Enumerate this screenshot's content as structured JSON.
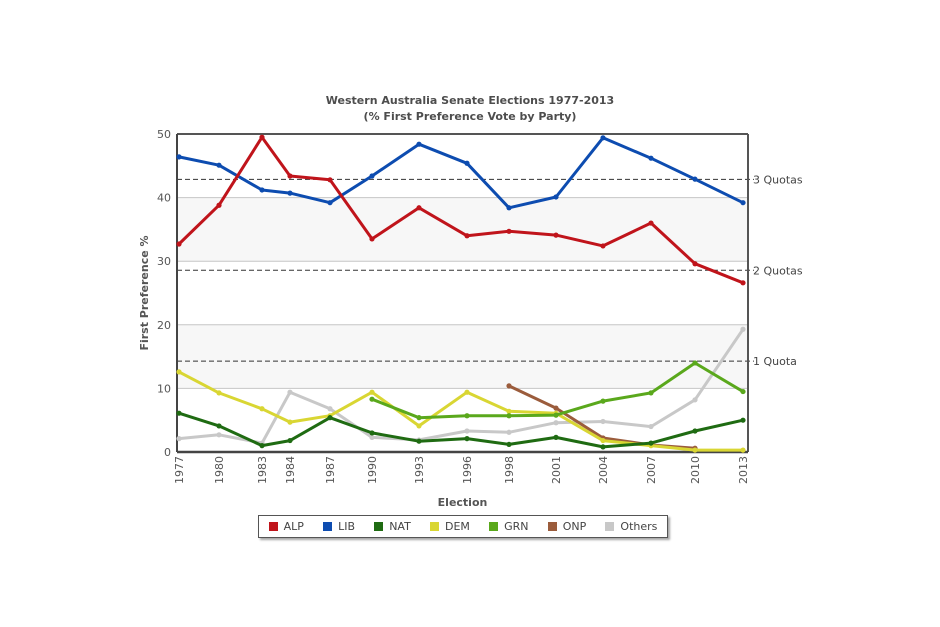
{
  "chart_data": {
    "type": "line",
    "title": "Western Australia Senate Elections 1977-2013",
    "subtitle": "(% First Preference Vote by Party)",
    "xlabel": "Election",
    "ylabel": "First Preference %",
    "ylim": [
      0,
      50
    ],
    "yticks": [
      0,
      10,
      20,
      30,
      40,
      50
    ],
    "grid": true,
    "banded_background": [
      [
        10,
        20
      ],
      [
        30,
        40
      ]
    ],
    "legend_position": "bottom",
    "categories": [
      "1977",
      "1980",
      "1983",
      "1984",
      "1987",
      "1990",
      "1993",
      "1996",
      "1998",
      "2001",
      "2004",
      "2007",
      "2010",
      "2013"
    ],
    "reference_lines": [
      {
        "label": "3 Quotas",
        "value": 42.86
      },
      {
        "label": "2 Quotas",
        "value": 28.57
      },
      {
        "label": "1 Quota",
        "value": 14.29
      }
    ],
    "series": [
      {
        "name": "ALP",
        "color": "#c0141b",
        "values": [
          32.7,
          38.8,
          49.5,
          43.4,
          42.8,
          33.5,
          38.4,
          34.0,
          34.7,
          34.1,
          32.4,
          36.0,
          29.6,
          26.6
        ]
      },
      {
        "name": "LIB",
        "color": "#0d4cb0",
        "values": [
          46.4,
          45.1,
          41.2,
          40.7,
          39.2,
          43.4,
          48.4,
          45.4,
          38.4,
          40.1,
          49.4,
          46.2,
          42.9,
          39.2
        ]
      },
      {
        "name": "NAT",
        "color": "#1f6b12",
        "values": [
          6.1,
          4.1,
          1.0,
          1.8,
          5.4,
          3.0,
          1.7,
          2.1,
          1.2,
          2.3,
          0.8,
          1.4,
          3.3,
          5.0
        ]
      },
      {
        "name": "DEM",
        "color": "#d9d633",
        "values": [
          12.6,
          9.3,
          6.8,
          4.7,
          5.7,
          9.4,
          4.1,
          9.4,
          6.4,
          6.1,
          1.8,
          1.0,
          0.3,
          0.3
        ]
      },
      {
        "name": "GRN",
        "color": "#5aa81c",
        "values": [
          null,
          null,
          null,
          null,
          null,
          8.3,
          5.4,
          5.7,
          5.7,
          5.8,
          8.0,
          9.3,
          14.0,
          9.5
        ]
      },
      {
        "name": "ONP",
        "color": "#9b5c3c",
        "values": [
          null,
          null,
          null,
          null,
          null,
          null,
          null,
          null,
          10.4,
          6.9,
          2.2,
          1.1,
          0.6,
          null
        ]
      },
      {
        "name": "Others",
        "color": "#c8c8c8",
        "values": [
          2.1,
          2.7,
          1.4,
          9.4,
          6.8,
          2.3,
          1.9,
          3.3,
          3.1,
          4.6,
          4.8,
          4.0,
          8.2,
          19.3
        ]
      }
    ]
  }
}
